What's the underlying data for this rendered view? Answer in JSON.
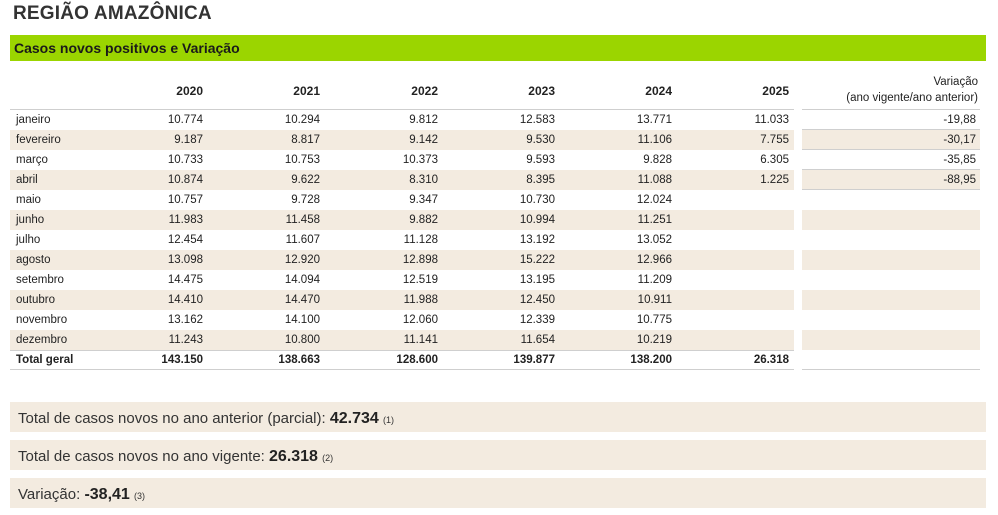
{
  "title": "REGIÃO AMAZÔNICA",
  "section_title": "Casos novos positivos e Variação",
  "years": [
    "2020",
    "2021",
    "2022",
    "2023",
    "2024",
    "2025"
  ],
  "variation_header": {
    "line1": "Variação",
    "line2": "(ano vigente/ano anterior)"
  },
  "rows": [
    {
      "month": "janeiro",
      "values": [
        "10.774",
        "10.294",
        "9.812",
        "12.583",
        "13.771",
        "11.033"
      ],
      "variation": "-19,88"
    },
    {
      "month": "fevereiro",
      "values": [
        "9.187",
        "8.817",
        "9.142",
        "9.530",
        "11.106",
        "7.755"
      ],
      "variation": "-30,17"
    },
    {
      "month": "março",
      "values": [
        "10.733",
        "10.753",
        "10.373",
        "9.593",
        "9.828",
        "6.305"
      ],
      "variation": "-35,85"
    },
    {
      "month": "abril",
      "values": [
        "10.874",
        "9.622",
        "8.310",
        "8.395",
        "11.088",
        "1.225"
      ],
      "variation": "-88,95"
    },
    {
      "month": "maio",
      "values": [
        "10.757",
        "9.728",
        "9.347",
        "10.730",
        "12.024",
        ""
      ],
      "variation": ""
    },
    {
      "month": "junho",
      "values": [
        "11.983",
        "11.458",
        "9.882",
        "10.994",
        "11.251",
        ""
      ],
      "variation": ""
    },
    {
      "month": "julho",
      "values": [
        "12.454",
        "11.607",
        "11.128",
        "13.192",
        "13.052",
        ""
      ],
      "variation": ""
    },
    {
      "month": "agosto",
      "values": [
        "13.098",
        "12.920",
        "12.898",
        "15.222",
        "12.966",
        ""
      ],
      "variation": ""
    },
    {
      "month": "setembro",
      "values": [
        "14.475",
        "14.094",
        "12.519",
        "13.195",
        "11.209",
        ""
      ],
      "variation": ""
    },
    {
      "month": "outubro",
      "values": [
        "14.410",
        "14.470",
        "11.988",
        "12.450",
        "10.911",
        ""
      ],
      "variation": ""
    },
    {
      "month": "novembro",
      "values": [
        "13.162",
        "14.100",
        "12.060",
        "12.339",
        "10.775",
        ""
      ],
      "variation": ""
    },
    {
      "month": "dezembro",
      "values": [
        "11.243",
        "10.800",
        "11.141",
        "11.654",
        "10.219",
        ""
      ],
      "variation": ""
    }
  ],
  "total": {
    "label": "Total geral",
    "values": [
      "143.150",
      "138.663",
      "128.600",
      "139.877",
      "138.200",
      "26.318"
    ]
  },
  "summary": [
    {
      "label": "Total de casos novos no ano anterior (parcial):",
      "value": "42.734",
      "ref": "(1)"
    },
    {
      "label": "Total de casos novos no ano vigente:",
      "value": "26.318",
      "ref": "(2)"
    },
    {
      "label": "Variação:",
      "value": "-38,41",
      "ref": "(3)"
    }
  ],
  "colors": {
    "accent": "#9bd500",
    "row_shade": "#f3ebe0"
  }
}
